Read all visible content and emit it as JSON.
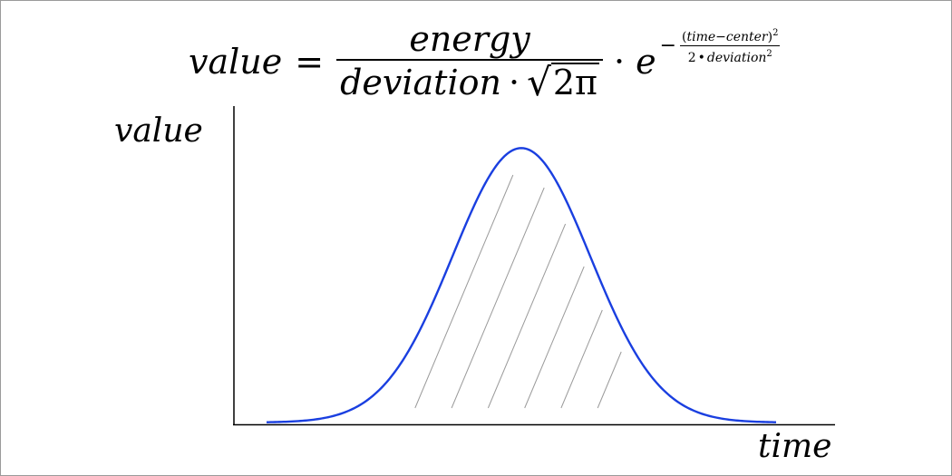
{
  "formula": {
    "lhs": "value",
    "equals": "=",
    "numerator": "energy",
    "denominator_var": "deviation",
    "dot": "·",
    "sqrt_symbol": "√",
    "sqrt_content": "2π",
    "base": "e",
    "exp_sign": "−",
    "exp_num_open": "(",
    "exp_num_body": "time−center",
    "exp_num_close": ")",
    "exp_num_power": "2",
    "exp_den_coef": "2",
    "exp_den_dot": "•",
    "exp_den_var": "deviation",
    "exp_den_power": "2"
  },
  "axes": {
    "y_label": "value",
    "x_label": "time"
  },
  "colors": {
    "curve": "#1a3fe0",
    "axes": "#000000",
    "hatch": "#9a9a9a",
    "frame": "#9a9a9a"
  },
  "chart_data": {
    "type": "line",
    "curve": "gaussian",
    "x_range": [
      0,
      1
    ],
    "y_range": [
      0,
      1
    ],
    "center": 0.5,
    "deviation": 0.135,
    "peak": 0.855,
    "shaded_interval": [
      0.27,
      0.7
    ],
    "shading": "diagonal-hatch"
  }
}
